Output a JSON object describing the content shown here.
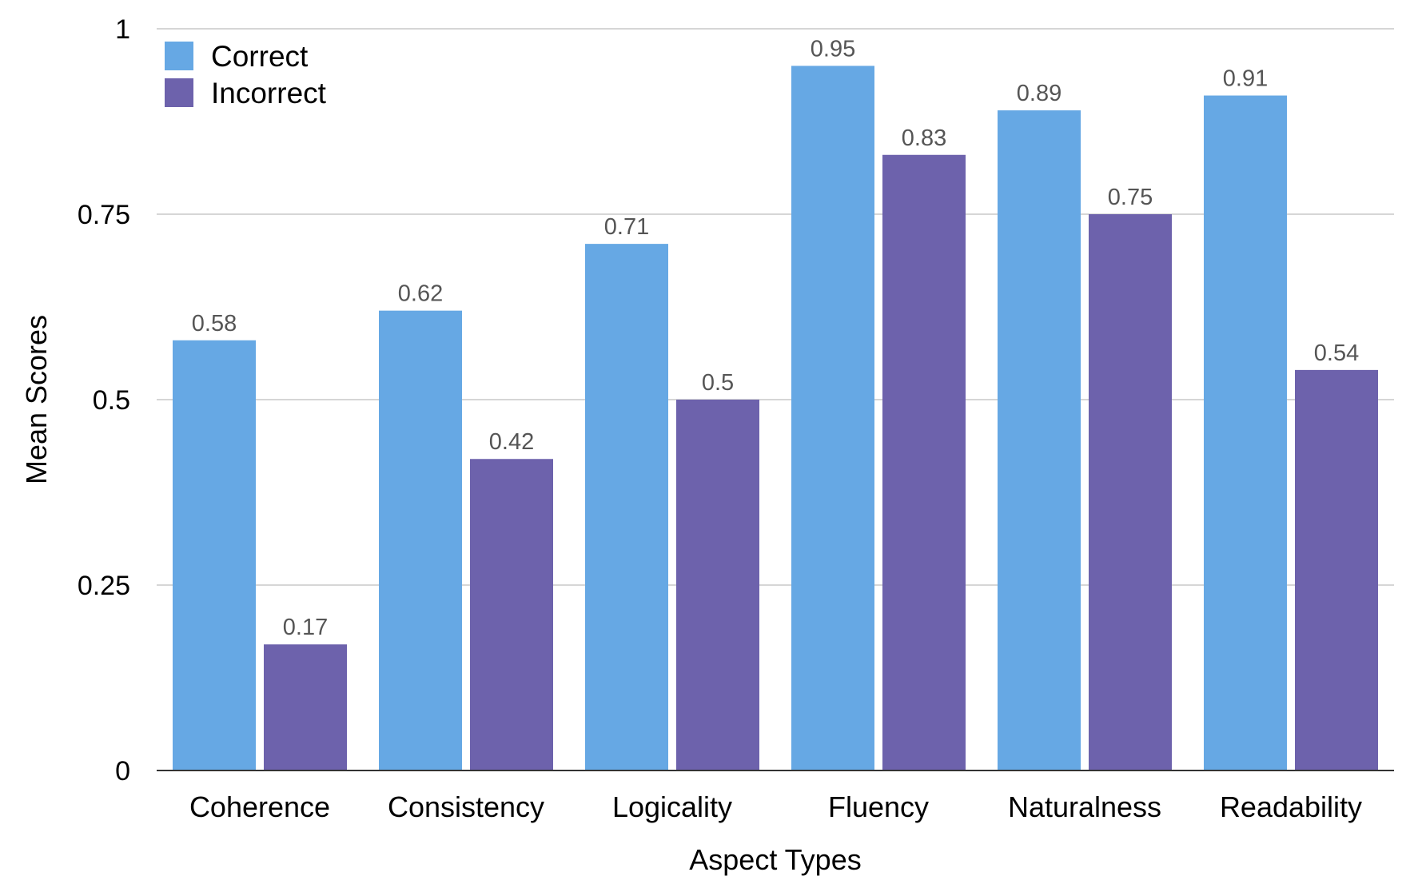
{
  "chart_data": {
    "type": "bar",
    "title": "",
    "xlabel": "Aspect Types",
    "ylabel": "Mean Scores",
    "ylim": [
      0,
      1
    ],
    "yticks": [
      0,
      0.25,
      0.5,
      0.75,
      1
    ],
    "ytick_labels": [
      "0",
      "0.25",
      "0.5",
      "0.75",
      "1"
    ],
    "grid": true,
    "legend_position": "top-left",
    "categories": [
      "Coherence",
      "Consistency",
      "Logicality",
      "Fluency",
      "Naturalness",
      "Readability"
    ],
    "series": [
      {
        "name": "Correct",
        "color": "#66a8e4",
        "values": [
          0.58,
          0.62,
          0.71,
          0.95,
          0.89,
          0.91
        ],
        "labels": [
          "0.58",
          "0.62",
          "0.71",
          "0.95",
          "0.89",
          "0.91"
        ]
      },
      {
        "name": "Incorrect",
        "color": "#6d62ac",
        "values": [
          0.17,
          0.42,
          0.5,
          0.83,
          0.75,
          0.54
        ],
        "labels": [
          "0.17",
          "0.42",
          "0.5",
          "0.83",
          "0.75",
          "0.54"
        ]
      }
    ]
  }
}
